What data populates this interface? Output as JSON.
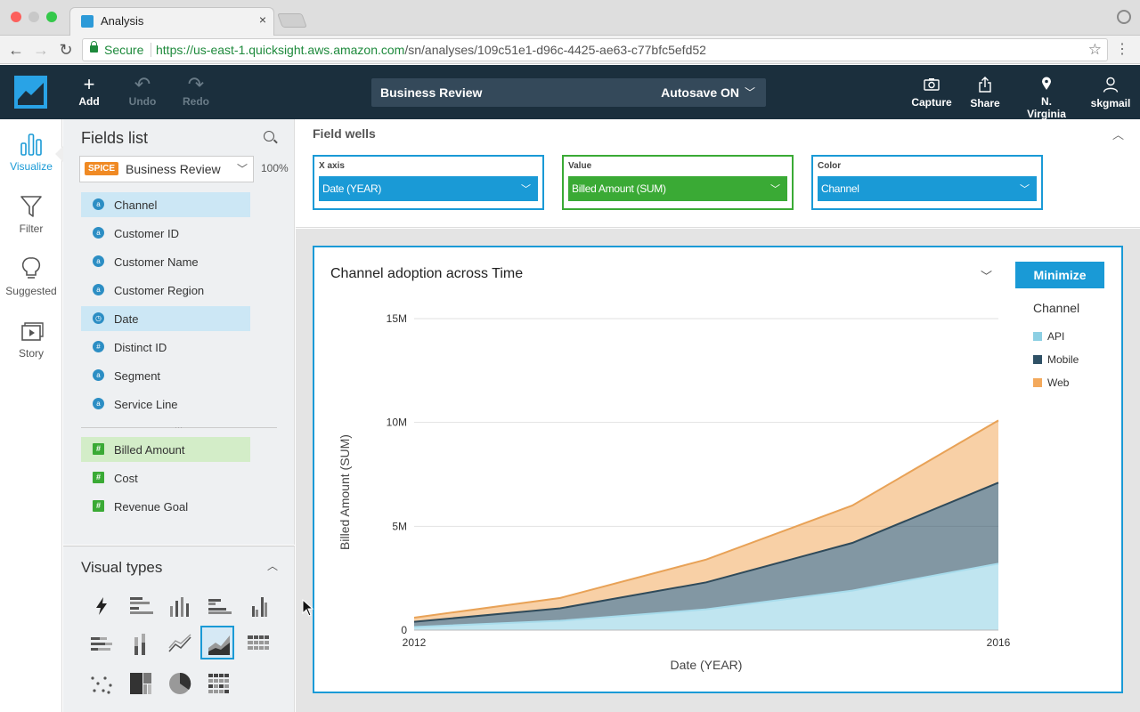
{
  "browser": {
    "tab_title": "Analysis",
    "tab_close": "×",
    "secure_label": "Secure",
    "url_host": "https://us-east-1.quicksight.aws.amazon.com",
    "url_path": "/sn/analyses/109c51e1-d96c-4425-ae63-c77bfc5efd52"
  },
  "header": {
    "add": "Add",
    "undo": "Undo",
    "redo": "Redo",
    "analysis_title": "Business Review",
    "autosave": "Autosave ON",
    "capture": "Capture",
    "share": "Share",
    "region": "N. Virginia",
    "user": "skgmail"
  },
  "rail": {
    "visualize": "Visualize",
    "filter": "Filter",
    "suggested": "Suggested",
    "story": "Story"
  },
  "fields_panel": {
    "title": "Fields list",
    "dataset_badge": "SPICE",
    "dataset_name": "Business Review",
    "spice_percent": "100%",
    "dimensions": [
      {
        "label": "Channel",
        "type": "a",
        "selected": true
      },
      {
        "label": "Customer ID",
        "type": "a",
        "selected": false
      },
      {
        "label": "Customer Name",
        "type": "a",
        "selected": false
      },
      {
        "label": "Customer Region",
        "type": "a",
        "selected": false
      },
      {
        "label": "Date",
        "type": "date",
        "selected": true
      },
      {
        "label": "Distinct ID",
        "type": "#",
        "selected": false
      },
      {
        "label": "Segment",
        "type": "a",
        "selected": false
      },
      {
        "label": "Service Line",
        "type": "a",
        "selected": false
      }
    ],
    "measures": [
      {
        "label": "Billed Amount",
        "type": "#",
        "selected": true
      },
      {
        "label": "Cost",
        "type": "#",
        "selected": false
      },
      {
        "label": "Revenue Goal",
        "type": "#",
        "selected": false
      }
    ]
  },
  "visual_types": {
    "title": "Visual types",
    "selected": "stacked-area-chart"
  },
  "field_wells": {
    "title": "Field wells",
    "x_axis": {
      "label": "X axis",
      "value": "Date (YEAR)"
    },
    "value": {
      "label": "Value",
      "value": "Billed Amount (SUM)"
    },
    "color": {
      "label": "Color",
      "value": "Channel"
    }
  },
  "visual": {
    "title": "Channel adoption across Time",
    "minimize": "Minimize",
    "legend_title": "Channel"
  },
  "colors": {
    "accent": "#1a9ad6",
    "measure_green": "#3aaa35",
    "header_bg": "#1b2f3d",
    "api": "#8ccfe3",
    "mobile": "#2f5166",
    "web": "#f3a95c"
  },
  "chart_data": {
    "type": "area",
    "stacked": true,
    "title": "Channel adoption across Time",
    "xlabel": "Date (YEAR)",
    "ylabel": "Billed Amount (SUM)",
    "x": [
      2012,
      2013,
      2014,
      2015,
      2016
    ],
    "x_tick_labels": [
      "2012",
      "2016"
    ],
    "y_ticks": [
      0,
      5000000,
      10000000,
      15000000
    ],
    "y_tick_labels": [
      "0",
      "5M",
      "10M",
      "15M"
    ],
    "ylim": [
      0,
      15000000
    ],
    "legend_position": "right",
    "series": [
      {
        "name": "API",
        "color": "#8ccfe3",
        "line": "#a8dcec",
        "values": [
          150000,
          450000,
          1000000,
          1900000,
          3200000
        ]
      },
      {
        "name": "Mobile",
        "color": "#2f5166",
        "line": "#2f4a5a",
        "values": [
          250000,
          600000,
          1300000,
          2300000,
          3900000
        ]
      },
      {
        "name": "Web",
        "color": "#f3a95c",
        "line": "#e8a257",
        "values": [
          200000,
          500000,
          1100000,
          1800000,
          3000000
        ]
      }
    ]
  }
}
